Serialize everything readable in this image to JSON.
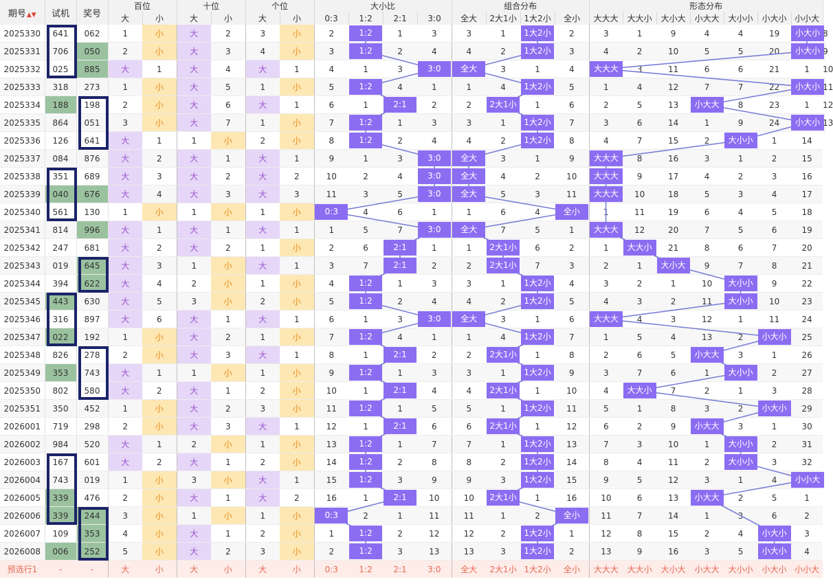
{
  "header": {
    "issue_label": "期号",
    "trial_label": "试机",
    "prize_label": "奖号",
    "groups": [
      {
        "label": "百位",
        "subs": [
          "大",
          "小"
        ]
      },
      {
        "label": "十位",
        "subs": [
          "大",
          "小"
        ]
      },
      {
        "label": "个位",
        "subs": [
          "大",
          "小"
        ]
      },
      {
        "label": "大小比",
        "subs": [
          "0:3",
          "1:2",
          "2:1",
          "3:0"
        ]
      },
      {
        "label": "组合分布",
        "subs": [
          "全大",
          "2大1小",
          "1大2小",
          "全小"
        ]
      },
      {
        "label": "形态分布",
        "subs": [
          "大大大",
          "大大小",
          "大小大",
          "小大大",
          "大小小",
          "小大小",
          "小小大"
        ]
      }
    ]
  },
  "colors": {
    "highlight_green": "#9bc29f",
    "purple_fill": "#e6d6f7",
    "yellow_fill": "#fde7b3",
    "pill_purple": "#8b6df2",
    "box_navy": "#1b2368"
  },
  "rows": [
    {
      "issue": "2025330",
      "trial": "641",
      "prize": "062",
      "thl": false,
      "phl": false,
      "c": [
        1,
        "小",
        "大",
        2,
        3,
        "小",
        2,
        "1:2",
        1,
        3,
        3,
        1,
        "1大2小",
        2,
        3,
        1,
        9,
        4,
        4,
        19,
        "小大小",
        8
      ]
    },
    {
      "issue": "2025331",
      "trial": "706",
      "prize": "050",
      "thl": false,
      "phl": true,
      "c": [
        2,
        "小",
        "大",
        3,
        4,
        "小",
        3,
        "1:2",
        2,
        4,
        4,
        2,
        "1大2小",
        3,
        4,
        2,
        10,
        5,
        5,
        20,
        "小大小",
        9
      ]
    },
    {
      "issue": "2025332",
      "trial": "025",
      "prize": "885",
      "thl": false,
      "phl": true,
      "c": [
        "大",
        1,
        "大",
        4,
        "大",
        1,
        4,
        1,
        3,
        "3:0",
        "全大",
        3,
        1,
        4,
        "大大大",
        3,
        11,
        6,
        6,
        21,
        1,
        10
      ]
    },
    {
      "issue": "2025333",
      "trial": "318",
      "prize": "273",
      "thl": false,
      "phl": false,
      "c": [
        1,
        "小",
        "大",
        5,
        1,
        "小",
        5,
        "1:2",
        4,
        1,
        1,
        4,
        "1大2小",
        5,
        1,
        4,
        12,
        7,
        7,
        22,
        "小大小",
        11
      ]
    },
    {
      "issue": "2025334",
      "trial": "188",
      "prize": "198",
      "thl": true,
      "phl": false,
      "c": [
        2,
        "小",
        "大",
        6,
        "大",
        1,
        6,
        1,
        "2:1",
        2,
        2,
        "2大1小",
        1,
        6,
        2,
        5,
        13,
        "小大大",
        8,
        23,
        1,
        12
      ]
    },
    {
      "issue": "2025335",
      "trial": "864",
      "prize": "051",
      "thl": false,
      "phl": false,
      "c": [
        3,
        "小",
        "大",
        7,
        1,
        "小",
        7,
        "1:2",
        1,
        3,
        3,
        1,
        "1大2小",
        7,
        3,
        6,
        14,
        1,
        9,
        24,
        "小大小",
        13
      ]
    },
    {
      "issue": "2025336",
      "trial": "126",
      "prize": "641",
      "thl": false,
      "phl": false,
      "c": [
        "大",
        1,
        1,
        "小",
        2,
        "小",
        8,
        "1:2",
        2,
        4,
        4,
        2,
        "1大2小",
        8,
        4,
        7,
        15,
        2,
        "大小小",
        1,
        14
      ]
    },
    {
      "issue": "2025337",
      "trial": "084",
      "prize": "876",
      "thl": false,
      "phl": false,
      "c": [
        "大",
        2,
        "大",
        1,
        "大",
        1,
        9,
        1,
        3,
        "3:0",
        "全大",
        3,
        1,
        9,
        "大大大",
        8,
        16,
        3,
        1,
        2,
        15
      ]
    },
    {
      "issue": "2025338",
      "trial": "351",
      "prize": "689",
      "thl": false,
      "phl": false,
      "c": [
        "大",
        3,
        "大",
        2,
        "大",
        2,
        10,
        2,
        4,
        "3:0",
        "全大",
        4,
        2,
        10,
        "大大大",
        9,
        17,
        4,
        2,
        3,
        16
      ]
    },
    {
      "issue": "2025339",
      "trial": "040",
      "prize": "676",
      "thl": true,
      "phl": true,
      "c": [
        "大",
        4,
        "大",
        3,
        "大",
        3,
        11,
        3,
        5,
        "3:0",
        "全大",
        5,
        3,
        11,
        "大大大",
        10,
        18,
        5,
        3,
        4,
        17
      ]
    },
    {
      "issue": "2025340",
      "trial": "561",
      "prize": "130",
      "thl": false,
      "phl": false,
      "c": [
        1,
        "小",
        1,
        "小",
        1,
        "小",
        "0:3",
        4,
        6,
        1,
        1,
        6,
        4,
        "全小",
        1,
        11,
        19,
        6,
        4,
        5,
        18
      ]
    },
    {
      "issue": "2025341",
      "trial": "814",
      "prize": "996",
      "thl": false,
      "phl": true,
      "c": [
        "大",
        1,
        "大",
        1,
        "大",
        1,
        1,
        5,
        7,
        "3:0",
        "全大",
        7,
        5,
        1,
        "大大大",
        12,
        20,
        7,
        5,
        6,
        19
      ]
    },
    {
      "issue": "2025342",
      "trial": "247",
      "prize": "681",
      "thl": false,
      "phl": false,
      "c": [
        "大",
        2,
        "大",
        2,
        1,
        "小",
        2,
        6,
        "2:1",
        1,
        1,
        "2大1小",
        6,
        2,
        1,
        "大大小",
        21,
        8,
        6,
        7,
        20
      ]
    },
    {
      "issue": "2025343",
      "trial": "019",
      "prize": "645",
      "thl": false,
      "phl": true,
      "c": [
        "大",
        3,
        1,
        "小",
        "大",
        1,
        3,
        7,
        "2:1",
        2,
        2,
        "2大1小",
        7,
        3,
        2,
        1,
        "大小大",
        9,
        7,
        8,
        21
      ]
    },
    {
      "issue": "2025344",
      "trial": "394",
      "prize": "622",
      "thl": false,
      "phl": true,
      "c": [
        "大",
        4,
        2,
        "小",
        1,
        "小",
        4,
        "1:2",
        1,
        3,
        3,
        1,
        "1大2小",
        4,
        3,
        2,
        1,
        10,
        "大小小",
        9,
        22
      ]
    },
    {
      "issue": "2025345",
      "trial": "443",
      "prize": "630",
      "thl": true,
      "phl": false,
      "c": [
        "大",
        5,
        3,
        "小",
        2,
        "小",
        5,
        "1:2",
        2,
        4,
        4,
        2,
        "1大2小",
        5,
        4,
        3,
        2,
        11,
        "大小小",
        10,
        23
      ]
    },
    {
      "issue": "2025346",
      "trial": "316",
      "prize": "897",
      "thl": false,
      "phl": false,
      "c": [
        "大",
        6,
        "大",
        1,
        "大",
        1,
        6,
        1,
        3,
        "3:0",
        "全大",
        3,
        1,
        6,
        "大大大",
        4,
        3,
        12,
        1,
        11,
        24
      ]
    },
    {
      "issue": "2025347",
      "trial": "022",
      "prize": "192",
      "thl": true,
      "phl": false,
      "c": [
        1,
        "小",
        "大",
        2,
        1,
        "小",
        7,
        "1:2",
        4,
        1,
        1,
        4,
        "1大2小",
        7,
        1,
        5,
        4,
        13,
        2,
        "小大小",
        25
      ]
    },
    {
      "issue": "2025348",
      "trial": "826",
      "prize": "278",
      "thl": false,
      "phl": false,
      "c": [
        2,
        "小",
        "大",
        3,
        "大",
        1,
        8,
        1,
        "2:1",
        2,
        2,
        "2大1小",
        1,
        8,
        2,
        6,
        5,
        "小大大",
        3,
        1,
        26
      ]
    },
    {
      "issue": "2025349",
      "trial": "353",
      "prize": "743",
      "thl": true,
      "phl": false,
      "c": [
        "大",
        1,
        1,
        "小",
        1,
        "小",
        9,
        "1:2",
        1,
        3,
        3,
        1,
        "1大2小",
        9,
        3,
        7,
        6,
        1,
        "大小小",
        2,
        27
      ]
    },
    {
      "issue": "2025350",
      "trial": "802",
      "prize": "580",
      "thl": false,
      "phl": false,
      "c": [
        "大",
        2,
        "大",
        1,
        2,
        "小",
        10,
        1,
        "2:1",
        4,
        4,
        "2大1小",
        1,
        10,
        4,
        "大大小",
        7,
        2,
        1,
        3,
        28
      ]
    },
    {
      "issue": "2025351",
      "trial": "350",
      "prize": "452",
      "thl": false,
      "phl": false,
      "c": [
        1,
        "小",
        "大",
        2,
        3,
        "小",
        11,
        "1:2",
        1,
        5,
        5,
        1,
        "1大2小",
        11,
        5,
        1,
        8,
        3,
        2,
        "小大小",
        29
      ]
    },
    {
      "issue": "2026001",
      "trial": "719",
      "prize": "298",
      "thl": false,
      "phl": false,
      "c": [
        2,
        "小",
        "大",
        3,
        "大",
        1,
        12,
        1,
        "2:1",
        6,
        6,
        "2大1小",
        1,
        12,
        6,
        2,
        9,
        "小大大",
        3,
        1,
        30
      ]
    },
    {
      "issue": "2026002",
      "trial": "984",
      "prize": "520",
      "thl": false,
      "phl": false,
      "c": [
        "大",
        1,
        2,
        "小",
        1,
        "小",
        13,
        "1:2",
        1,
        7,
        7,
        1,
        "1大2小",
        13,
        7,
        3,
        10,
        1,
        "大小小",
        2,
        31
      ]
    },
    {
      "issue": "2026003",
      "trial": "167",
      "prize": "601",
      "thl": false,
      "phl": false,
      "c": [
        "大",
        2,
        "大",
        1,
        2,
        "小",
        14,
        "1:2",
        2,
        8,
        8,
        2,
        "1大2小",
        14,
        8,
        4,
        11,
        2,
        "大小小",
        3,
        32
      ]
    },
    {
      "issue": "2026004",
      "trial": "743",
      "prize": "019",
      "thl": false,
      "phl": false,
      "c": [
        1,
        "小",
        3,
        "小",
        "大",
        1,
        15,
        "1:2",
        3,
        9,
        9,
        3,
        "1大2小",
        15,
        9,
        5,
        12,
        3,
        1,
        4,
        "小小大"
      ]
    },
    {
      "issue": "2026005",
      "trial": "339",
      "prize": "476",
      "thl": true,
      "phl": false,
      "c": [
        2,
        "小",
        "大",
        1,
        "大",
        2,
        16,
        1,
        "2:1",
        10,
        10,
        "2大1小",
        1,
        16,
        10,
        6,
        13,
        "小大大",
        2,
        5,
        1
      ]
    },
    {
      "issue": "2026006",
      "trial": "339",
      "prize": "244",
      "thl": true,
      "phl": true,
      "c": [
        3,
        "小",
        1,
        "小",
        1,
        "小",
        "0:3",
        2,
        1,
        11,
        11,
        1,
        2,
        "全小",
        11,
        7,
        14,
        1,
        3,
        6,
        2
      ]
    },
    {
      "issue": "2026007",
      "trial": "109",
      "prize": "353",
      "thl": false,
      "phl": true,
      "c": [
        4,
        "小",
        "大",
        1,
        2,
        "小",
        1,
        "1:2",
        2,
        12,
        12,
        2,
        "1大2小",
        1,
        12,
        8,
        15,
        2,
        4,
        "小大小",
        3
      ]
    },
    {
      "issue": "2026008",
      "trial": "006",
      "prize": "252",
      "thl": true,
      "phl": true,
      "c": [
        5,
        "小",
        "大",
        2,
        3,
        "小",
        2,
        "1:2",
        3,
        13,
        13,
        3,
        "1大2小",
        2,
        13,
        9,
        16,
        3,
        5,
        "小大小",
        4
      ]
    }
  ],
  "prediction_row": {
    "label": "预选行1",
    "trial": "-",
    "prize": "-",
    "c": [
      "大",
      "小",
      "大",
      "小",
      "大",
      "小",
      "0:3",
      "1:2",
      "2:1",
      "3:0",
      "全大",
      "2大1小",
      "1大2小",
      "全小",
      "大大大",
      "大大小",
      "大小大",
      "小大大",
      "大小小",
      "小大小",
      "小小大"
    ]
  }
}
